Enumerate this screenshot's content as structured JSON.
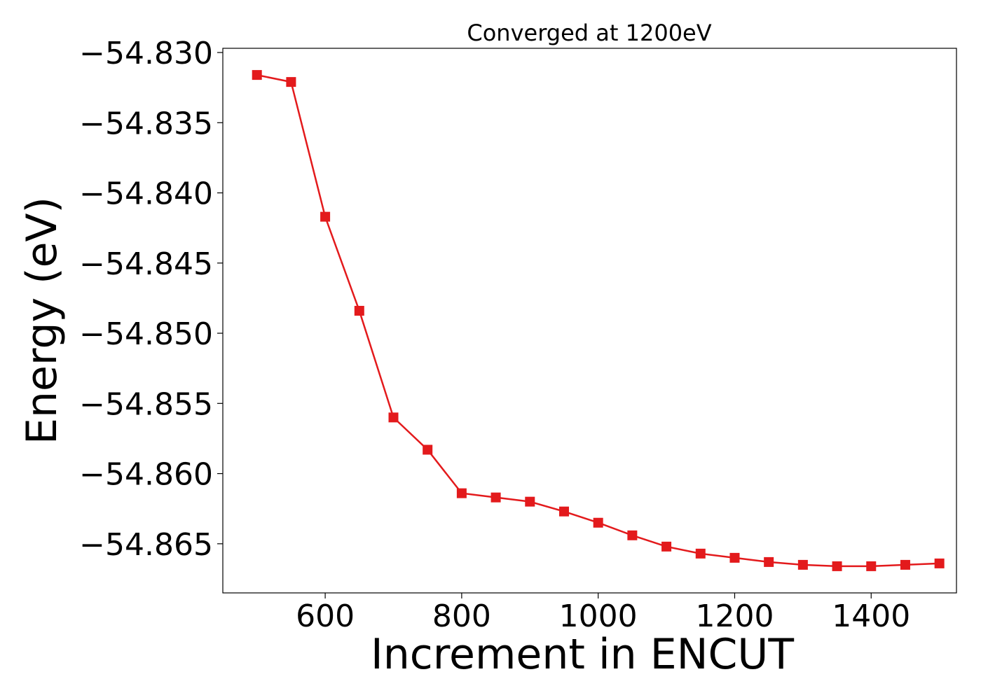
{
  "chart_data": {
    "type": "line",
    "title": "Converged at 1200eV",
    "xlabel": "Increment in ENCUT",
    "ylabel": "Energy (eV)",
    "xlim": [
      450,
      1525
    ],
    "ylim": [
      -54.8685,
      -54.8297
    ],
    "x_ticks": [
      600,
      800,
      1000,
      1200,
      1400
    ],
    "x_tick_labels": [
      "600",
      "800",
      "1000",
      "1200",
      "1400"
    ],
    "y_ticks": [
      -54.83,
      -54.835,
      -54.84,
      -54.845,
      -54.85,
      -54.855,
      -54.86,
      -54.865
    ],
    "y_tick_labels": [
      "−54.830",
      "−54.835",
      "−54.840",
      "−54.845",
      "−54.850",
      "−54.855",
      "−54.860",
      "−54.865"
    ],
    "grid": false,
    "legend": "none",
    "series": [
      {
        "color": "#e31a1c",
        "marker": "square",
        "x": [
          500,
          550,
          600,
          650,
          700,
          750,
          800,
          850,
          900,
          950,
          1000,
          1050,
          1100,
          1150,
          1200,
          1250,
          1300,
          1350,
          1400,
          1450,
          1500
        ],
        "y": [
          -54.8316,
          -54.8321,
          -54.8417,
          -54.8484,
          -54.856,
          -54.8583,
          -54.8614,
          -54.8617,
          -54.862,
          -54.8627,
          -54.8635,
          -54.8644,
          -54.8652,
          -54.8657,
          -54.866,
          -54.8663,
          -54.8665,
          -54.8666,
          -54.8666,
          -54.8665,
          -54.8664
        ]
      }
    ]
  }
}
